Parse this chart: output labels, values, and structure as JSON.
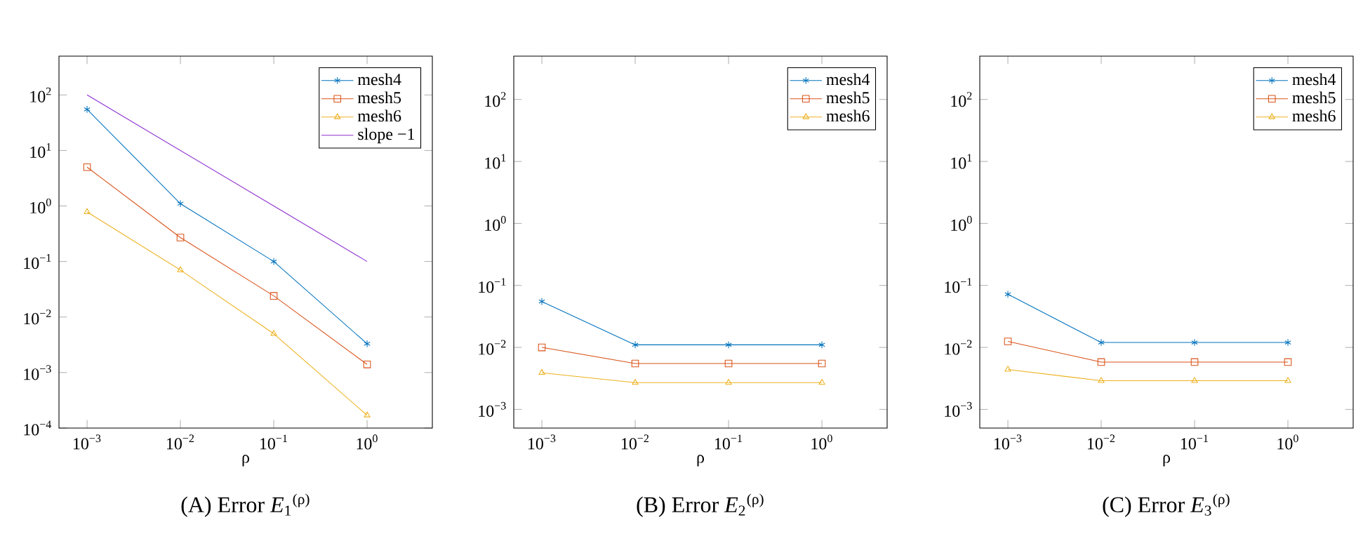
{
  "chart_data": [
    {
      "type": "line",
      "title": "(A) Error *E*$_{1}$$^{(ρ)}$",
      "xlabel": "ρ",
      "log": "xy",
      "legend": "top right",
      "x": [
        0.001,
        0.01,
        0.1,
        1
      ],
      "xlim": [
        0.0005,
        5
      ],
      "ylim": [
        0.0001,
        500
      ],
      "xticks": [
        {
          "value": 0.001,
          "label": "10$^{−3}$"
        },
        {
          "value": 0.01,
          "label": "10$^{−2}$"
        },
        {
          "value": 0.1,
          "label": "10$^{−1}$"
        },
        {
          "value": 1,
          "label": "10$^{0}$"
        }
      ],
      "yticks": [
        {
          "value": 0.0001,
          "label": "10$^{−4}$"
        },
        {
          "value": 0.001,
          "label": "10$^{−3}$"
        },
        {
          "value": 0.01,
          "label": "10$^{−2}$"
        },
        {
          "value": 0.1,
          "label": "10$^{−1}$"
        },
        {
          "value": 1,
          "label": "10$^{0}$"
        },
        {
          "value": 10,
          "label": "10$^{1}$"
        },
        {
          "value": 100,
          "label": "10$^{2}$"
        }
      ],
      "series": [
        {
          "name": "mesh4",
          "color": "#0072bd",
          "marker": "cross",
          "values": [
            55,
            1.1,
            0.1,
            0.0033
          ]
        },
        {
          "name": "mesh5",
          "color": "#d95319",
          "marker": "square",
          "values": [
            5,
            0.27,
            0.024,
            0.0014
          ]
        },
        {
          "name": "mesh6",
          "color": "#edb120",
          "marker": "triangle",
          "values": [
            0.78,
            0.07,
            0.005,
            0.00017
          ]
        },
        {
          "name": "slope −1",
          "color": "#8e2fd0",
          "marker": "none",
          "values": [
            100,
            10,
            1,
            0.1
          ]
        }
      ]
    },
    {
      "type": "line",
      "title": "(B) Error *E*$_{2}$$^{(ρ)}$",
      "xlabel": "ρ",
      "log": "xy",
      "legend": "top right",
      "x": [
        0.001,
        0.01,
        0.1,
        1
      ],
      "xlim": [
        0.0005,
        5
      ],
      "ylim": [
        0.0005,
        500
      ],
      "xticks": [
        {
          "value": 0.001,
          "label": "10$^{−3}$"
        },
        {
          "value": 0.01,
          "label": "10$^{−2}$"
        },
        {
          "value": 0.1,
          "label": "10$^{−1}$"
        },
        {
          "value": 1,
          "label": "10$^{0}$"
        }
      ],
      "yticks": [
        {
          "value": 0.001,
          "label": "10$^{−3}$"
        },
        {
          "value": 0.01,
          "label": "10$^{−2}$"
        },
        {
          "value": 0.1,
          "label": "10$^{−1}$"
        },
        {
          "value": 1,
          "label": "10$^{0}$"
        },
        {
          "value": 10,
          "label": "10$^{1}$"
        },
        {
          "value": 100,
          "label": "10$^{2}$"
        }
      ],
      "series": [
        {
          "name": "mesh4",
          "color": "#0072bd",
          "marker": "cross",
          "values": [
            0.055,
            0.011,
            0.011,
            0.011
          ]
        },
        {
          "name": "mesh5",
          "color": "#d95319",
          "marker": "square",
          "values": [
            0.01,
            0.0055,
            0.0055,
            0.0055
          ]
        },
        {
          "name": "mesh6",
          "color": "#edb120",
          "marker": "triangle",
          "values": [
            0.0039,
            0.0027,
            0.0027,
            0.0027
          ]
        }
      ]
    },
    {
      "type": "line",
      "title": "(C) Error *E*$_{3}$$^{(ρ)}$",
      "xlabel": "ρ",
      "log": "xy",
      "legend": "top right",
      "x": [
        0.001,
        0.01,
        0.1,
        1
      ],
      "xlim": [
        0.0005,
        5
      ],
      "ylim": [
        0.0005,
        500
      ],
      "xticks": [
        {
          "value": 0.001,
          "label": "10$^{−3}$"
        },
        {
          "value": 0.01,
          "label": "10$^{−2}$"
        },
        {
          "value": 0.1,
          "label": "10$^{−1}$"
        },
        {
          "value": 1,
          "label": "10$^{0}$"
        }
      ],
      "yticks": [
        {
          "value": 0.001,
          "label": "10$^{−3}$"
        },
        {
          "value": 0.01,
          "label": "10$^{−2}$"
        },
        {
          "value": 0.1,
          "label": "10$^{−1}$"
        },
        {
          "value": 1,
          "label": "10$^{0}$"
        },
        {
          "value": 10,
          "label": "10$^{1}$"
        },
        {
          "value": 100,
          "label": "10$^{2}$"
        }
      ],
      "series": [
        {
          "name": "mesh4",
          "color": "#0072bd",
          "marker": "cross",
          "values": [
            0.072,
            0.012,
            0.012,
            0.012
          ]
        },
        {
          "name": "mesh5",
          "color": "#d95319",
          "marker": "square",
          "values": [
            0.0125,
            0.0058,
            0.0058,
            0.0058
          ]
        },
        {
          "name": "mesh6",
          "color": "#edb120",
          "marker": "triangle",
          "values": [
            0.0044,
            0.0029,
            0.0029,
            0.0029
          ]
        }
      ]
    }
  ]
}
